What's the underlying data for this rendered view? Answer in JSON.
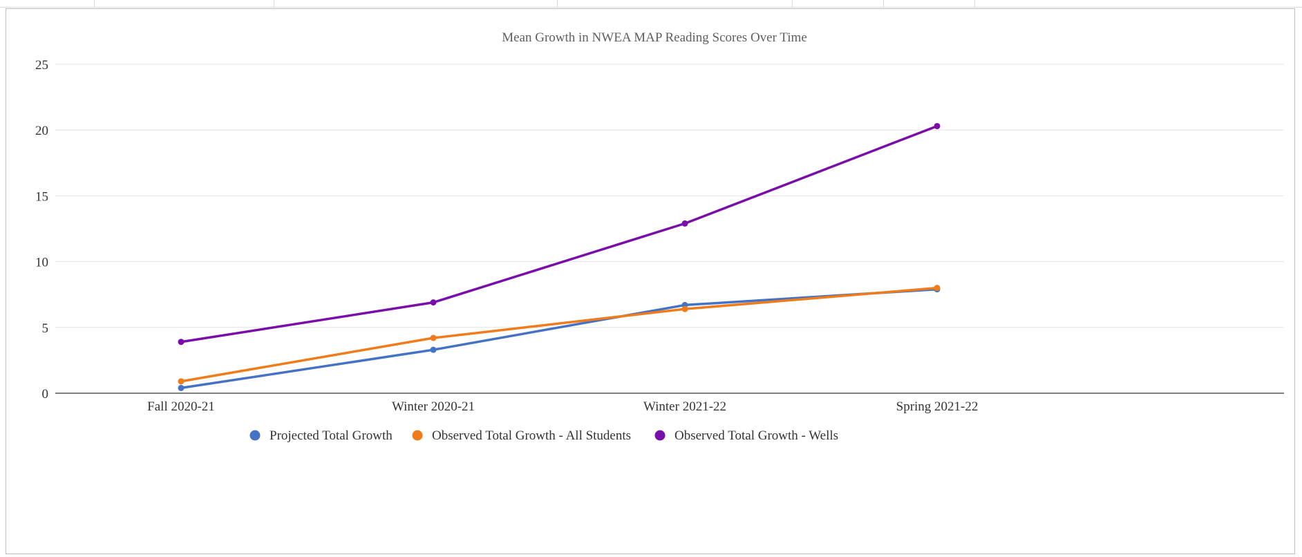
{
  "colors": {
    "projected": "#4472c4",
    "observed_all": "#f07b1a",
    "observed_wells": "#7a0ea8",
    "grid": "#e4e4e4",
    "axis": "#333333"
  },
  "chart_data": {
    "type": "line",
    "title": "Mean Growth in NWEA MAP Reading Scores Over Time",
    "xlabel": "",
    "ylabel": "",
    "categories": [
      "Fall 2020-21",
      "Winter 2020-21",
      "Winter 2021-22",
      "Spring 2021-22"
    ],
    "ylim": [
      0,
      25
    ],
    "yticks": [
      0,
      5,
      10,
      15,
      20,
      25
    ],
    "grid": true,
    "legend_position": "bottom",
    "series": [
      {
        "name": "Projected Total Growth",
        "color": "#4472c4",
        "values": [
          0.4,
          3.3,
          6.7,
          7.9
        ]
      },
      {
        "name": "Observed Total Growth - All Students",
        "color": "#f07b1a",
        "values": [
          0.9,
          4.2,
          6.4,
          8.0
        ]
      },
      {
        "name": "Observed Total Growth - Wells",
        "color": "#7a0ea8",
        "values": [
          3.9,
          6.9,
          12.9,
          20.3
        ]
      }
    ]
  }
}
